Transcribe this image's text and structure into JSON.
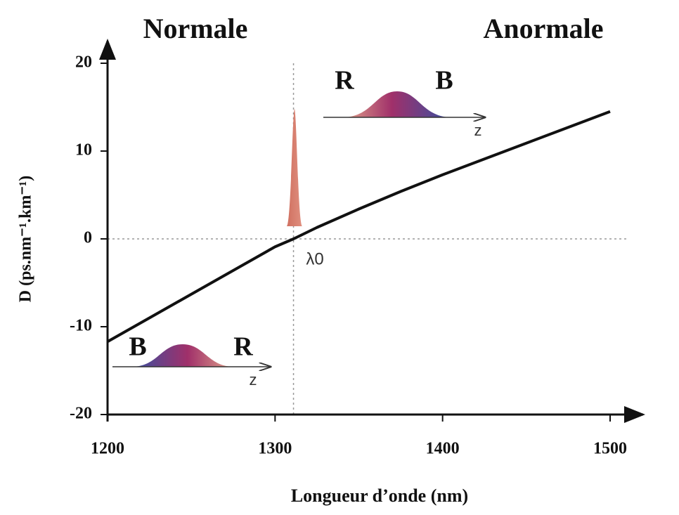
{
  "chart_data": {
    "type": "line",
    "title_left": "Normale",
    "title_right": "Anormale",
    "x_label": "Longueur d’onde (nm)",
    "y_label": "D (ps.nm⁻¹.km⁻¹)",
    "x": [
      1200,
      1225,
      1250,
      1275,
      1300,
      1311,
      1325,
      1350,
      1375,
      1400,
      1425,
      1450,
      1475,
      1500
    ],
    "values": [
      -11.7,
      -9.0,
      -6.3,
      -3.6,
      -0.9,
      0,
      1.3,
      3.4,
      5.4,
      7.3,
      9.1,
      10.9,
      12.7,
      14.5
    ],
    "color": "#111111",
    "xlim": [
      1200,
      1500
    ],
    "xticks": [
      1200,
      1300,
      1400,
      1500
    ],
    "ylim": [
      -20,
      20
    ],
    "yticks": [
      -20,
      -10,
      0,
      10,
      20
    ],
    "lambda0": 1311,
    "annotations": [
      "R",
      "B",
      "z",
      "B",
      "R",
      "z",
      "λ0"
    ]
  }
}
